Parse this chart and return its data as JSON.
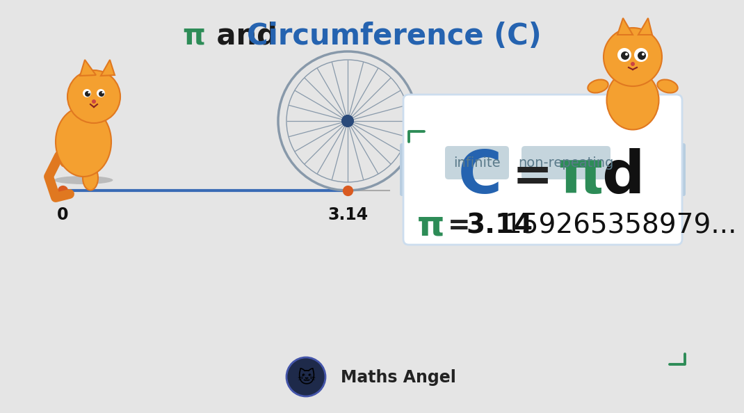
{
  "bg_color": "#e5e5e5",
  "green_color": "#2d8c57",
  "blue_color": "#2563b0",
  "dark_color": "#1a1a2e",
  "line_color": "#3a6bb5",
  "orange_dot": "#d95a20",
  "spoke_color": "#8899aa",
  "hub_color": "#2a4a7a",
  "white": "#ffffff",
  "tab_color": "#b8cde0",
  "tag_bg": "#c5d5dd",
  "tag_text": "#5a7a8a",
  "corner_green": "#2d8c57",
  "pi_bold_color": "#222222",
  "logo_bg": "#1e2a4a",
  "title_pi": "π",
  "title_and": " and ",
  "title_circ": "Circumference (C)",
  "formula_C": "C",
  "formula_eq": "=",
  "formula_pi": "π",
  "formula_d": "d",
  "label_0": "0",
  "label_314": "3.14",
  "infinite": "infinite",
  "non_repeating": "non-repeating",
  "pi_sym": "π",
  "pi_eq": "=",
  "pi_bold": "3.14",
  "pi_rest": "159265358979...",
  "maths_angel": "Maths Angel",
  "n_spokes": 24
}
